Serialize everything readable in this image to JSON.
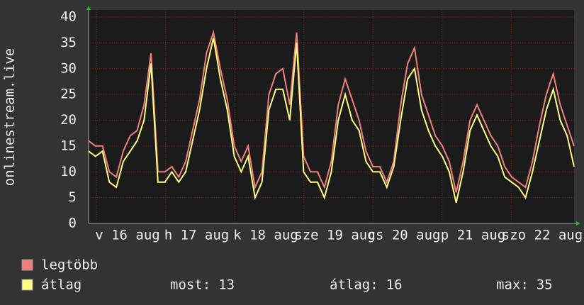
{
  "chart_data": {
    "type": "line",
    "y_label": "onlinestream.live",
    "ylim": [
      0,
      40
    ],
    "yticks": [
      0,
      5,
      10,
      15,
      20,
      25,
      30,
      35,
      40
    ],
    "grid": true,
    "x_labels": [
      "v 16 aug",
      "h 17 aug",
      "k 18 aug",
      "sze 19 aug",
      "cs 20 aug",
      "p 21 aug",
      "szo 22 aug"
    ],
    "series": [
      {
        "name": "legtöbb",
        "color": "#f08080",
        "values": [
          16,
          15,
          15,
          10,
          9,
          14,
          17,
          18,
          23,
          33,
          10,
          10,
          11,
          9,
          12,
          18,
          24,
          33,
          37,
          30,
          24,
          15,
          12,
          15,
          7,
          10,
          25,
          29,
          30,
          23,
          37,
          13,
          10,
          10,
          7,
          12,
          23,
          28,
          24,
          20,
          14,
          11,
          11,
          8,
          12,
          23,
          31,
          34,
          25,
          21,
          17,
          15,
          12,
          6,
          12,
          20,
          23,
          20,
          17,
          15,
          11,
          9,
          8,
          7,
          12,
          19,
          25,
          29,
          23,
          19,
          15
        ]
      },
      {
        "name": "átlag",
        "color": "#ffff80",
        "values": [
          14,
          13,
          14,
          8,
          7,
          12,
          14,
          16,
          20,
          31,
          8,
          8,
          10,
          8,
          10,
          16,
          22,
          30,
          36,
          28,
          22,
          13,
          10,
          13,
          5,
          8,
          22,
          26,
          26,
          20,
          35,
          10,
          8,
          8,
          5,
          10,
          20,
          25,
          20,
          18,
          12,
          10,
          10,
          7,
          11,
          20,
          28,
          30,
          22,
          18,
          15,
          13,
          10,
          4,
          10,
          18,
          21,
          18,
          15,
          13,
          9,
          8,
          7,
          5,
          10,
          16,
          22,
          26,
          20,
          17,
          11
        ]
      }
    ],
    "stats": [
      {
        "label": "most:",
        "value": 13
      },
      {
        "label": "átlag:",
        "value": 16
      },
      {
        "label": "max:",
        "value": 35
      }
    ]
  }
}
